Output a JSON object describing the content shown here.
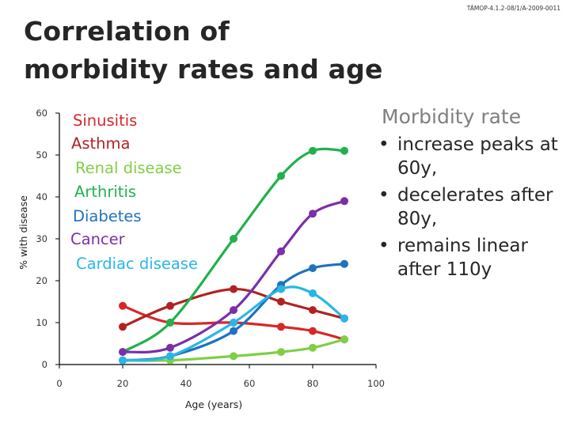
{
  "page": {
    "title_line1": "Correlation of",
    "title_line2": "morbidity rates and age",
    "project_code": "TÁMOP-4.1.2-08/1/A-2009-0011"
  },
  "info": {
    "title": "Morbidity rate",
    "bullets": [
      "increase peaks at 60y,",
      "decelerates after 80y,",
      "remains linear after 110y"
    ]
  },
  "chart_data": {
    "type": "line",
    "xlabel": "Age (years)",
    "ylabel": "% with disease",
    "xlim": [
      0,
      100
    ],
    "ylim": [
      0,
      60
    ],
    "x_ticks": [
      0,
      20,
      40,
      60,
      80,
      100
    ],
    "y_ticks": [
      0,
      10,
      20,
      30,
      40,
      50,
      60
    ],
    "legend_position": "top-left",
    "series": [
      {
        "name": "Sinusitis",
        "color": "#d62828",
        "x": [
          20,
          35,
          55,
          70,
          80,
          90
        ],
        "y": [
          14,
          10,
          10,
          9,
          8,
          6
        ]
      },
      {
        "name": "Asthma",
        "color": "#b22222",
        "x": [
          20,
          35,
          55,
          70,
          80,
          90
        ],
        "y": [
          9,
          14,
          18,
          15,
          13,
          11
        ]
      },
      {
        "name": "Renal disease",
        "color": "#7fcf45",
        "x": [
          20,
          35,
          55,
          70,
          80,
          90
        ],
        "y": [
          1,
          1,
          2,
          3,
          4,
          6
        ]
      },
      {
        "name": "Arthritis",
        "color": "#22b14c",
        "x": [
          20,
          35,
          55,
          70,
          80,
          90
        ],
        "y": [
          3,
          10,
          30,
          45,
          51,
          51
        ]
      },
      {
        "name": "Diabetes",
        "color": "#1e73be",
        "x": [
          20,
          35,
          55,
          70,
          80,
          90
        ],
        "y": [
          1,
          2,
          8,
          19,
          23,
          24
        ]
      },
      {
        "name": "Cancer",
        "color": "#7b2fa8",
        "x": [
          20,
          35,
          55,
          70,
          80,
          90
        ],
        "y": [
          3,
          4,
          13,
          27,
          36,
          39
        ]
      },
      {
        "name": "Cardiac disease",
        "color": "#29b6e6",
        "x": [
          20,
          35,
          55,
          70,
          80,
          90
        ],
        "y": [
          1,
          2,
          10,
          18,
          17,
          11
        ]
      }
    ]
  }
}
